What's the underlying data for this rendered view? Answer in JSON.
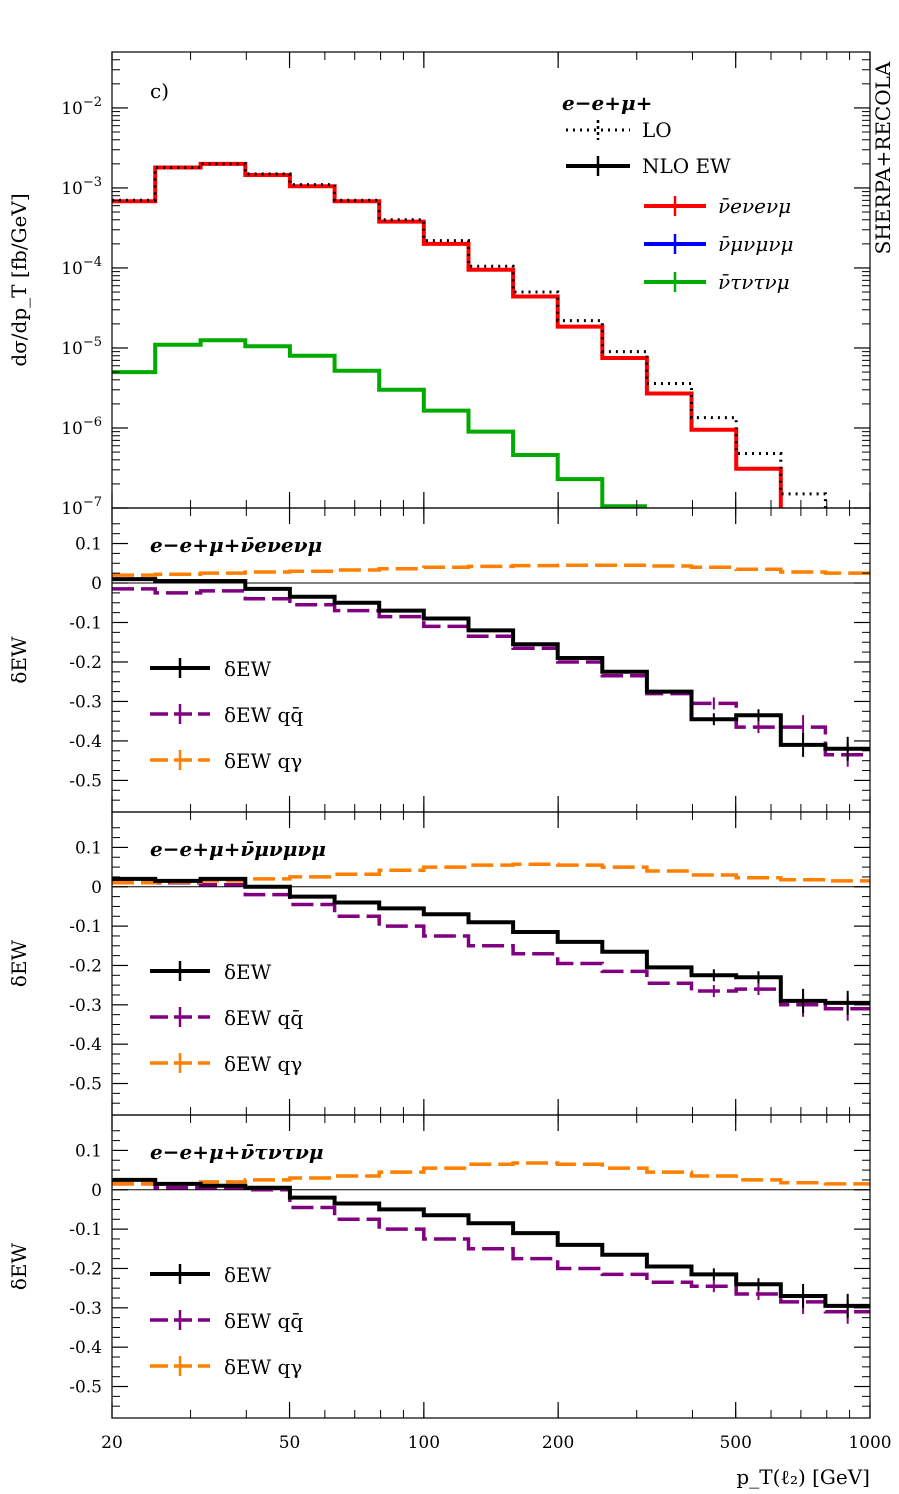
{
  "chart_data": {
    "type": "line",
    "xlabel": "p_T(ℓ₂) [GeV]",
    "x_scale": "log",
    "xlim": [
      20,
      1000
    ],
    "x_ticks": [
      20,
      50,
      100,
      200,
      500,
      1000
    ],
    "x_tick_labels": [
      "20",
      "50",
      "100",
      "200",
      "500",
      "1000"
    ],
    "bin_edges": [
      20,
      25,
      31.6,
      39.8,
      50.1,
      63.1,
      79.4,
      100,
      125.9,
      158.5,
      199.5,
      251.2,
      316.2,
      398.1,
      501.2,
      631,
      794.3,
      1000
    ],
    "panels": [
      {
        "id": "main",
        "panel_label": "c)",
        "ylabel": "dσ/dp_T [fb/GeV]",
        "y_scale": "log",
        "ylim": [
          1e-07,
          0.05
        ],
        "y_ticks": [
          1e-07,
          1e-06,
          1e-05,
          0.0001,
          0.001,
          0.01
        ],
        "y_tick_labels": [
          "10−7",
          "10−6",
          "10−5",
          "10−4",
          "10−3",
          "10−2"
        ],
        "side_label": "SHERPA+RECOLA",
        "legend_title": "e−e+μ+",
        "legend_position": "top-right",
        "series": [
          {
            "name": "LO",
            "color": "#000000",
            "style": "dotted",
            "role": "legend-only",
            "values": []
          },
          {
            "name": "NLO EW",
            "color": "#000000",
            "style": "solid",
            "role": "legend-only",
            "values": []
          },
          {
            "name": "ν̄eνeνμ",
            "color": "#ff0000",
            "style": "solid",
            "values": [
              0.00068,
              0.0018,
              0.002,
              0.00145,
              0.00105,
              0.00068,
              0.00038,
              0.0002,
              9.5e-05,
              4.4e-05,
              1.85e-05,
              7.5e-06,
              2.7e-06,
              9.5e-07,
              3.1e-07,
              9e-08,
              null
            ]
          },
          {
            "name": "LO ν̄eνeνμ",
            "color": "#000000",
            "style": "dotted",
            "legend": false,
            "values": [
              0.0007,
              0.0018,
              0.002,
              0.0015,
              0.0011,
              0.0007,
              0.0004,
              0.00022,
              0.000105,
              5e-05,
              2.2e-05,
              9e-06,
              3.6e-06,
              1.35e-06,
              4.8e-07,
              1.5e-07,
              9e-08
            ]
          },
          {
            "name": "ν̄μνμνμ",
            "color": "#0000ff",
            "style": "solid",
            "values": []
          },
          {
            "name": "ν̄τντνμ",
            "color": "#00aa00",
            "style": "solid",
            "values": [
              5e-06,
              1.1e-05,
              1.25e-05,
              1.05e-05,
              8e-06,
              5.2e-06,
              3e-06,
              1.65e-06,
              9e-07,
              4.6e-07,
              2.3e-07,
              1.05e-07,
              null,
              null,
              null,
              null,
              null
            ]
          }
        ]
      },
      {
        "id": "ratio1",
        "label": "e−e+μ+ν̄eνeνμ",
        "ylabel": "δEW",
        "ylim": [
          -0.58,
          0.19
        ],
        "y_ticks": [
          0.1,
          0,
          -0.1,
          -0.2,
          -0.3,
          -0.4,
          -0.5
        ],
        "y_tick_labels": [
          "0.1",
          "0",
          "-0.1",
          "-0.2",
          "-0.3",
          "-0.4",
          "-0.5"
        ],
        "legend_position": "lower-left",
        "series": [
          {
            "name": "δEW",
            "color": "#000000",
            "style": "solid",
            "values": [
              0.01,
              0.005,
              0.005,
              -0.015,
              -0.035,
              -0.05,
              -0.07,
              -0.09,
              -0.12,
              -0.155,
              -0.19,
              -0.225,
              -0.275,
              -0.345,
              -0.335,
              -0.41,
              -0.42
            ]
          },
          {
            "name": "δEW qq̄",
            "color": "#800080",
            "style": "dashed",
            "values": [
              -0.015,
              -0.025,
              -0.02,
              -0.04,
              -0.055,
              -0.07,
              -0.085,
              -0.11,
              -0.135,
              -0.165,
              -0.2,
              -0.235,
              -0.28,
              -0.305,
              -0.365,
              -0.365,
              -0.435
            ]
          },
          {
            "name": "δEW qγ",
            "color": "#ff8000",
            "style": "dashed",
            "values": [
              0.02,
              0.022,
              0.025,
              0.028,
              0.03,
              0.033,
              0.036,
              0.04,
              0.042,
              0.044,
              0.045,
              0.045,
              0.043,
              0.04,
              0.035,
              0.028,
              0.025
            ]
          }
        ]
      },
      {
        "id": "ratio2",
        "label": "e−e+μ+ν̄μνμνμ",
        "ylabel": "δEW",
        "ylim": [
          -0.58,
          0.19
        ],
        "y_ticks": [
          0.1,
          0,
          -0.1,
          -0.2,
          -0.3,
          -0.4,
          -0.5
        ],
        "y_tick_labels": [
          "0.1",
          "0",
          "-0.1",
          "-0.2",
          "-0.3",
          "-0.4",
          "-0.5"
        ],
        "legend_position": "lower-left",
        "series": [
          {
            "name": "δEW",
            "color": "#000000",
            "style": "solid",
            "values": [
              0.02,
              0.015,
              0.02,
              0.0,
              -0.025,
              -0.04,
              -0.055,
              -0.07,
              -0.09,
              -0.115,
              -0.14,
              -0.165,
              -0.205,
              -0.225,
              -0.23,
              -0.29,
              -0.295
            ]
          },
          {
            "name": "δEW qq̄",
            "color": "#800080",
            "style": "dashed",
            "values": [
              0.015,
              0.01,
              0.005,
              -0.02,
              -0.045,
              -0.075,
              -0.1,
              -0.125,
              -0.15,
              -0.17,
              -0.195,
              -0.215,
              -0.245,
              -0.265,
              -0.26,
              -0.3,
              -0.31
            ]
          },
          {
            "name": "δEW qγ",
            "color": "#ff8000",
            "style": "dashed",
            "values": [
              0.01,
              0.012,
              0.015,
              0.02,
              0.025,
              0.032,
              0.042,
              0.05,
              0.055,
              0.057,
              0.055,
              0.05,
              0.04,
              0.03,
              0.023,
              0.018,
              0.015
            ]
          }
        ]
      },
      {
        "id": "ratio3",
        "label": "e−e+μ+ν̄τντνμ",
        "ylabel": "δEW",
        "ylim": [
          -0.58,
          0.19
        ],
        "y_ticks": [
          0.1,
          0,
          -0.1,
          -0.2,
          -0.3,
          -0.4,
          -0.5
        ],
        "y_tick_labels": [
          "0.1",
          "0",
          "-0.1",
          "-0.2",
          "-0.3",
          "-0.4",
          "-0.5"
        ],
        "legend_position": "lower-left",
        "series": [
          {
            "name": "δEW",
            "color": "#000000",
            "style": "solid",
            "values": [
              0.025,
              0.015,
              0.01,
              0.005,
              -0.02,
              -0.035,
              -0.05,
              -0.065,
              -0.085,
              -0.11,
              -0.14,
              -0.165,
              -0.195,
              -0.215,
              -0.24,
              -0.27,
              -0.295
            ]
          },
          {
            "name": "δEW qq̄",
            "color": "#800080",
            "style": "dashed",
            "values": [
              0.015,
              0.005,
              0.005,
              0.0,
              -0.045,
              -0.075,
              -0.1,
              -0.125,
              -0.15,
              -0.175,
              -0.2,
              -0.215,
              -0.235,
              -0.245,
              -0.265,
              -0.285,
              -0.31
            ]
          },
          {
            "name": "δEW qγ",
            "color": "#ff8000",
            "style": "dashed",
            "values": [
              0.015,
              0.015,
              0.02,
              0.025,
              0.03,
              0.035,
              0.045,
              0.055,
              0.065,
              0.068,
              0.065,
              0.055,
              0.045,
              0.035,
              0.025,
              0.018,
              0.015
            ]
          }
        ]
      }
    ]
  }
}
